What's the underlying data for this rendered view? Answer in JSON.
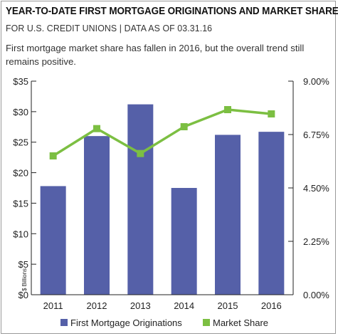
{
  "header": {
    "title": "YEAR-TO-DATE FIRST MORTGAGE ORIGINATIONS AND MARKET SHARE",
    "subtitle": "FOR U.S. CREDIT UNIONS | DATA AS OF 03.31.16",
    "description": "First mortgage market share has fallen in 2016, but the overall trend still remains positive."
  },
  "chart_data": {
    "type": "bar",
    "categories": [
      "2011",
      "2012",
      "2013",
      "2014",
      "2015",
      "2016"
    ],
    "series": [
      {
        "name": "First Mortgage Originations",
        "type": "bar",
        "axis": "left",
        "color": "#5560a8",
        "values": [
          17.8,
          26.0,
          31.2,
          17.5,
          26.2,
          26.7
        ]
      },
      {
        "name": "Market Share",
        "type": "line",
        "axis": "right",
        "color": "#7cbf42",
        "values": [
          5.85,
          7.0,
          5.95,
          7.08,
          7.8,
          7.62
        ]
      }
    ],
    "y_left": {
      "label": "$ Billions",
      "min": 0,
      "max": 35,
      "ticks": [
        "$0",
        "$5",
        "$10",
        "$15",
        "$20",
        "$25",
        "$30",
        "$35"
      ]
    },
    "y_right": {
      "min": 0,
      "max": 9,
      "ticks": [
        "0.00%",
        "2.25%",
        "4.50%",
        "6.75%",
        "9.00%"
      ]
    },
    "grid": false,
    "legend_position": "bottom"
  }
}
